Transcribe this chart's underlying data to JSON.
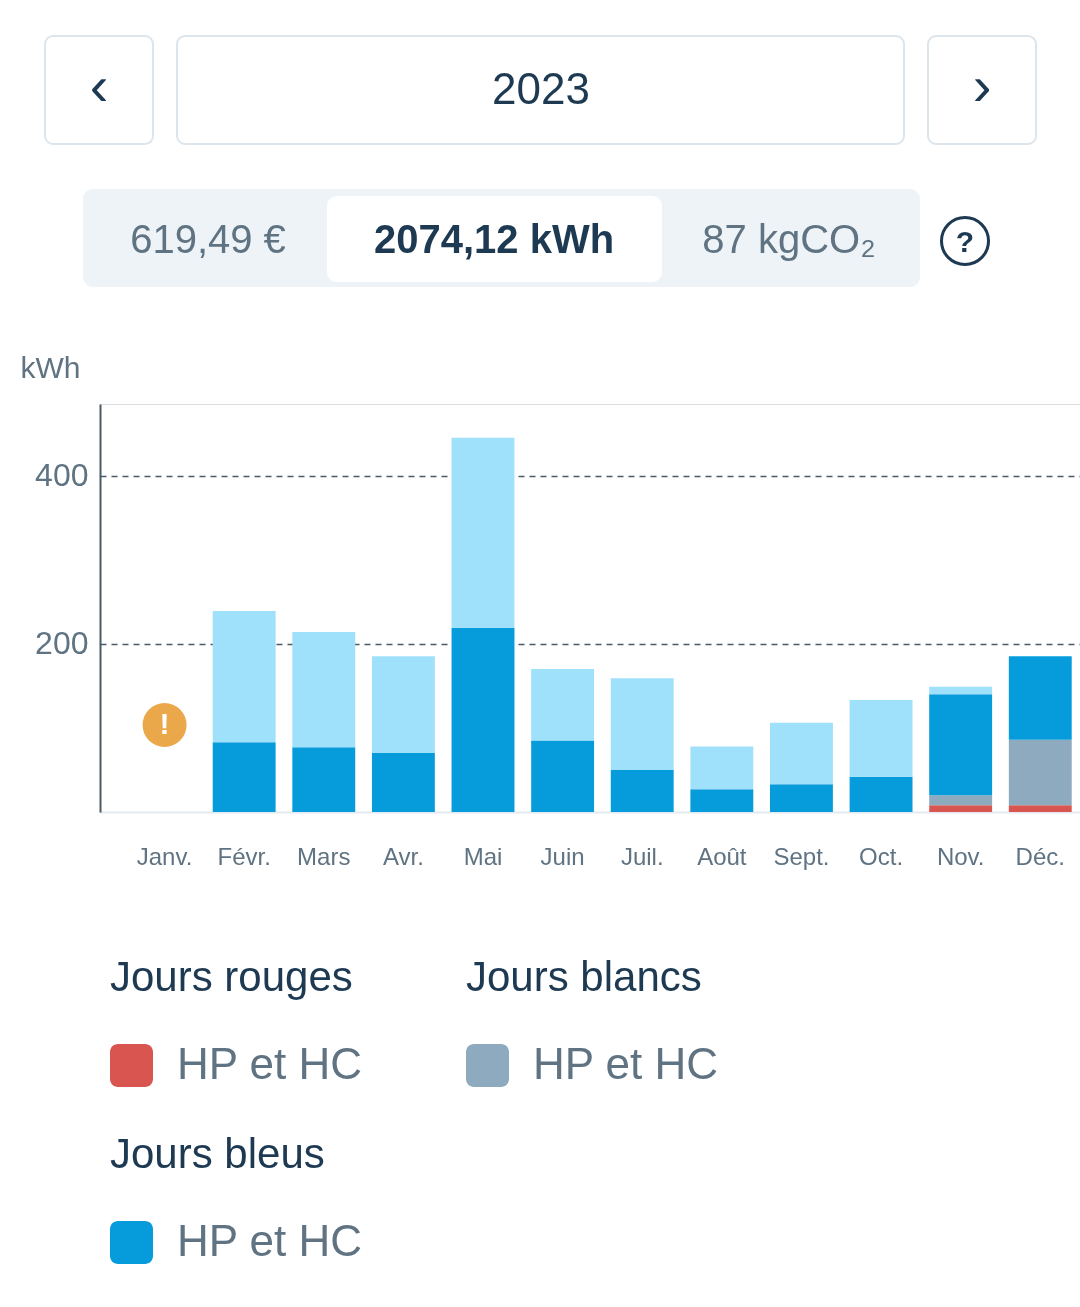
{
  "chart_data": {
    "type": "bar",
    "stacked": true,
    "title": "2023",
    "ylabel": "kWh",
    "categories": [
      "Janv.",
      "Févr.",
      "Mars",
      "Avr.",
      "Mai",
      "Juin",
      "Juil.",
      "Août",
      "Sept.",
      "Oct.",
      "Nov.",
      "Déc."
    ],
    "series": [
      {
        "name": "HP et HC",
        "color": "#d95550",
        "values": [
          null,
          null,
          null,
          null,
          null,
          null,
          null,
          null,
          null,
          null,
          8,
          8
        ]
      },
      {
        "name": "HP et HC",
        "color": "#8eaabf",
        "values": [
          null,
          null,
          null,
          null,
          null,
          null,
          null,
          null,
          null,
          null,
          12,
          78
        ]
      },
      {
        "name": "HP et HC",
        "color": "#069cdc",
        "values": [
          null,
          83,
          77,
          70,
          219,
          85,
          50,
          27,
          33,
          42,
          120,
          99
        ]
      },
      {
        "color": "#9fe0fa",
        "values": [
          null,
          156,
          137,
          115,
          226,
          85,
          109,
          51,
          73,
          91,
          9,
          null
        ]
      }
    ],
    "ylim": [
      0,
      485
    ],
    "yticks": [
      200,
      400
    ],
    "grid": "y",
    "legend": "bottom",
    "annotations": [
      "‹",
      "›",
      "619,49 €",
      "2074,12 kWh",
      "87 kgCO₂",
      "?",
      "Jours rouges",
      "Jours blancs",
      "Jours bleus",
      {
        "text": "!",
        "x": "Janv."
      }
    ]
  }
}
